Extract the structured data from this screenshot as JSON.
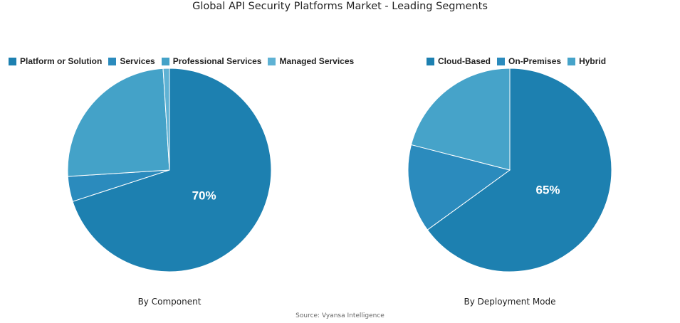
{
  "title": "Global API Security Platforms Market - Leading Segments",
  "source": "Source: Vyansa Intelligence",
  "chart_data": [
    {
      "type": "pie",
      "title": "By Component",
      "labels": [
        "Platform or Solution",
        "Services",
        "Professional Services",
        "Managed Services"
      ],
      "values": [
        70,
        4,
        25,
        1
      ],
      "colors": [
        "#1d80b0",
        "#2b8bbd",
        "#44a2c8",
        "#5fb2d4"
      ],
      "data_labels": [
        "70%",
        "",
        "",
        ""
      ]
    },
    {
      "type": "pie",
      "title": "By Deployment Mode",
      "labels": [
        "Cloud-Based",
        "On-Premises",
        "Hybrid"
      ],
      "values": [
        65,
        14,
        21
      ],
      "colors": [
        "#1d80b0",
        "#2b8bbd",
        "#46a3c9"
      ],
      "data_labels": [
        "65%",
        "",
        ""
      ]
    }
  ]
}
